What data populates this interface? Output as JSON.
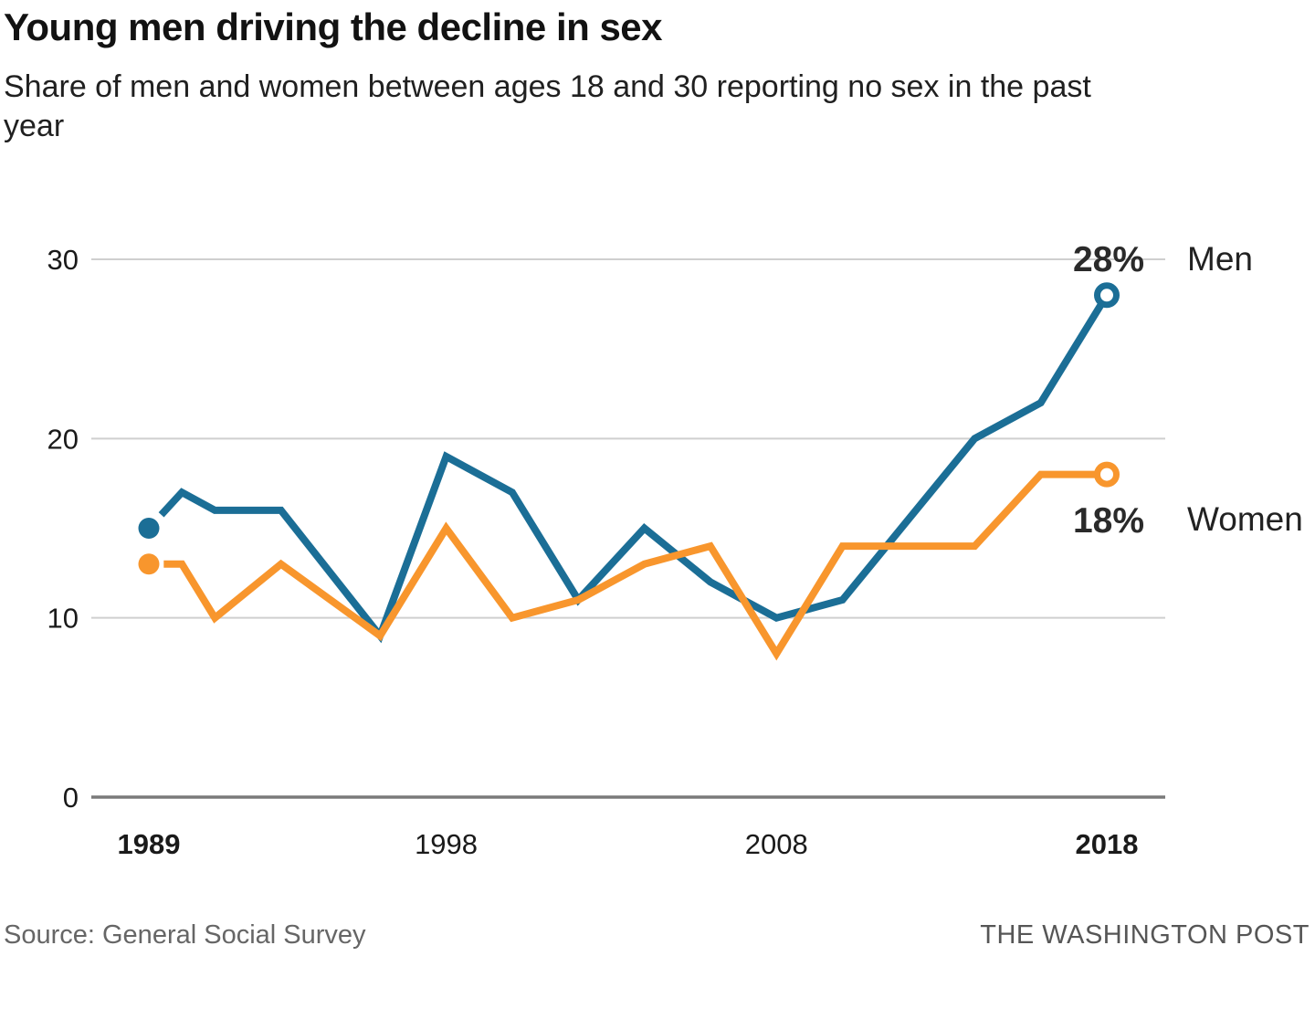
{
  "header": {
    "title": "Young men driving the decline in sex",
    "subtitle_lines": [
      "Share of men and women between ages 18 and 30 reporting no sex in the past",
      "year"
    ]
  },
  "footer": {
    "source": "Source: General Social Survey",
    "credit": "THE WASHINGTON POST"
  },
  "chart_data": {
    "type": "line",
    "x": [
      1989,
      1990,
      1991,
      1993,
      1996,
      1998,
      2000,
      2002,
      2004,
      2006,
      2008,
      2010,
      2014,
      2016,
      2018
    ],
    "series": [
      {
        "name": "Men",
        "color": "#1b6e96",
        "end_label": "28%",
        "values": [
          15,
          17,
          16,
          16,
          9,
          19,
          17,
          11,
          15,
          12,
          10,
          11,
          20,
          22,
          28
        ]
      },
      {
        "name": "Women",
        "color": "#f8962d",
        "end_label": "18%",
        "values": [
          13,
          13,
          10,
          13,
          9,
          15,
          10,
          11,
          13,
          14,
          8,
          14,
          14,
          18,
          18
        ]
      }
    ],
    "xticks": [
      {
        "label": "1989",
        "year": 1989,
        "bold": true
      },
      {
        "label": "1998",
        "year": 1998,
        "bold": false
      },
      {
        "label": "2008",
        "year": 2008,
        "bold": false
      },
      {
        "label": "2018",
        "year": 2018,
        "bold": true
      }
    ],
    "yticks": [
      {
        "label": "0",
        "value": 0
      },
      {
        "label": "10",
        "value": 10
      },
      {
        "label": "20",
        "value": 20
      },
      {
        "label": "30",
        "value": 30
      }
    ],
    "xlim": [
      1989,
      2018
    ],
    "ylim": [
      0,
      30.5
    ],
    "grid": "horizontal-only",
    "legend_position": "right-of-line-ends",
    "start_marker": "filled-dot",
    "end_marker": "open-circle",
    "styles": {
      "gridline_color": "#cfcfcf",
      "axis_color": "#7a7a7a",
      "tick_text_color": "#1a1a1a",
      "label_text_color": "#222222"
    }
  }
}
